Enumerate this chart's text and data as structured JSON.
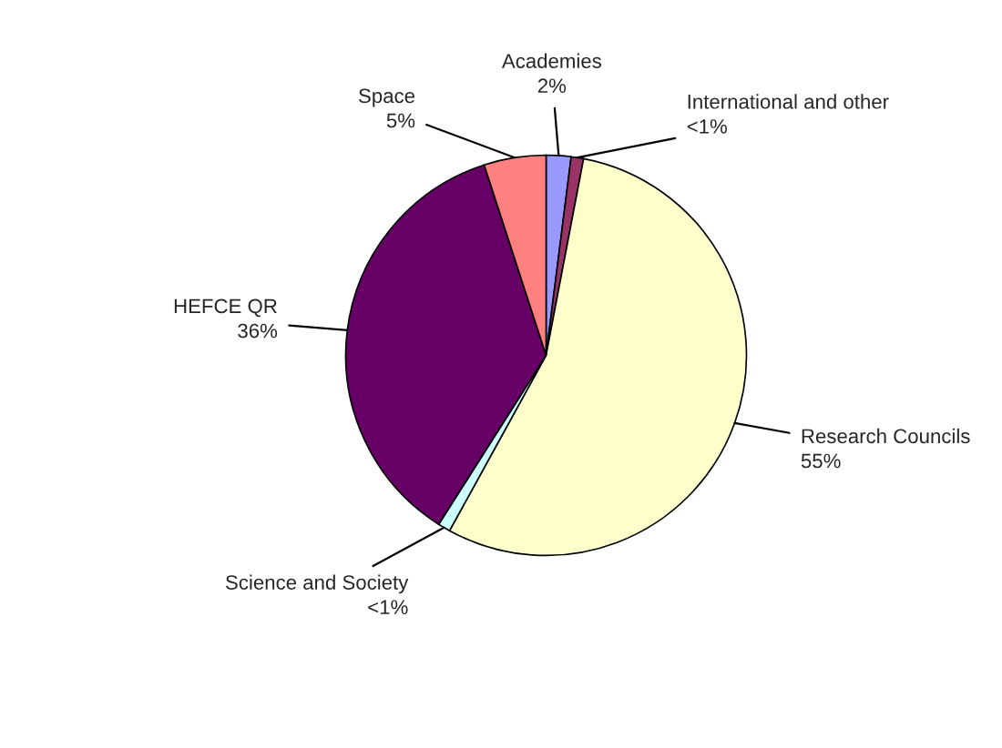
{
  "chart_data": {
    "type": "pie",
    "categories": [
      "Academies",
      "International and other",
      "Research Councils",
      "Science and Society",
      "HEFCE QR",
      "Space"
    ],
    "values": [
      2,
      1,
      55,
      1,
      36,
      5
    ],
    "value_labels": [
      "2%",
      "<1%",
      "55%",
      "<1%",
      "36%",
      "5%"
    ],
    "colors": [
      "#9999ff",
      "#993366",
      "#ffffcc",
      "#ccffff",
      "#660066",
      "#ff8080"
    ]
  }
}
